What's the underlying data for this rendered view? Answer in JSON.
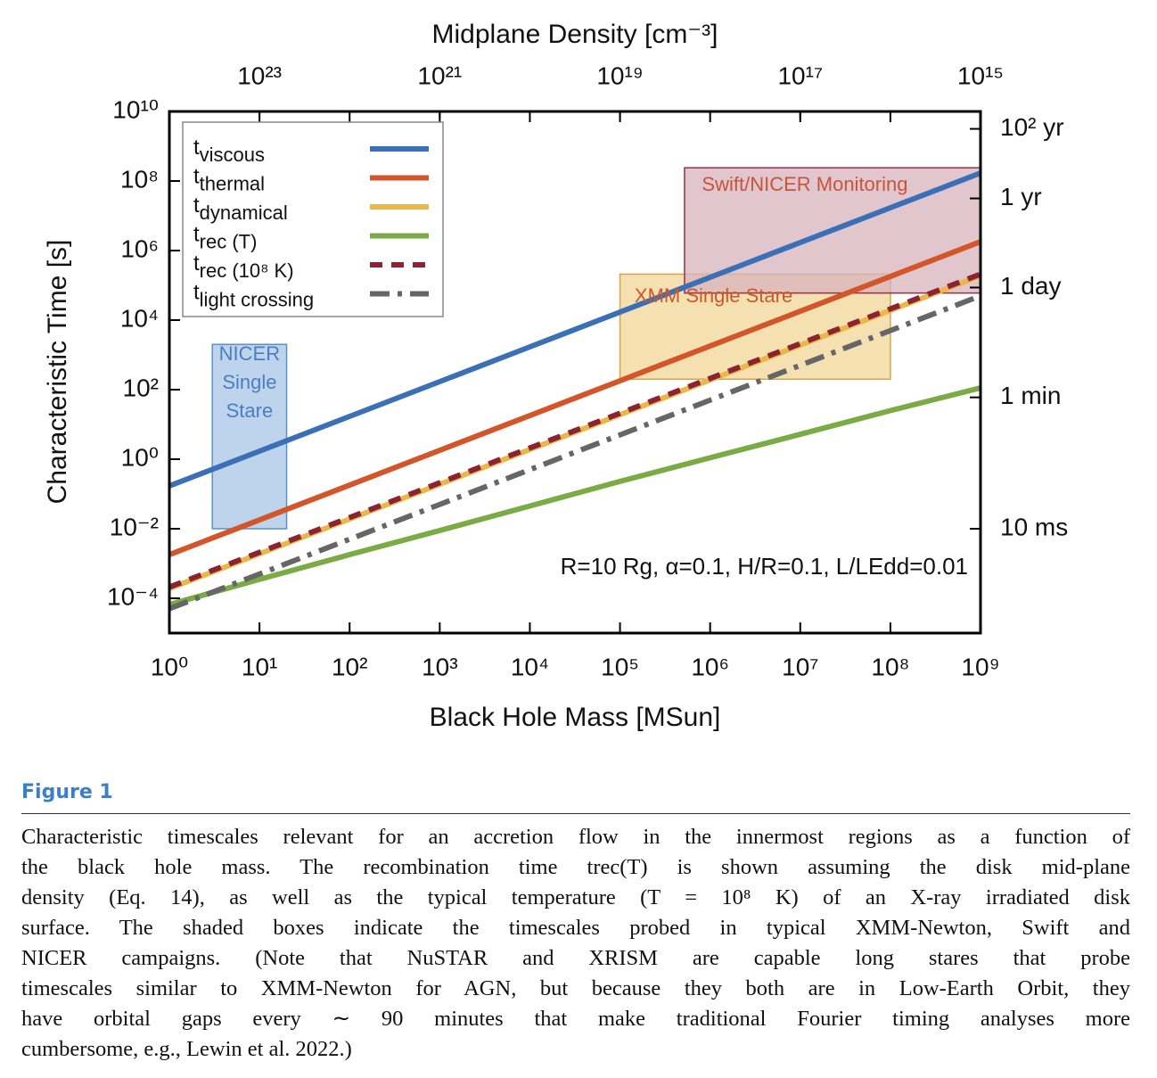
{
  "chart_data": {
    "type": "line",
    "xscale": "log",
    "yscale": "log",
    "x2_label": "Midplane Density [cm⁻³]",
    "x_label": "Black Hole Mass [MSun]",
    "y_label": "Characteristic Time [s]",
    "annotation": "R=10 Rg, α=0.1, H/R=0.1, L/LEdd=0.01",
    "x": [
      1,
      10,
      100,
      1000,
      10000,
      100000,
      1000000,
      10000000,
      100000000,
      1000000000
    ],
    "xlim": [
      1,
      1000000000
    ],
    "xticks": [
      {
        "value": 1,
        "label": "10⁰"
      },
      {
        "value": 10,
        "label": "10¹"
      },
      {
        "value": 100,
        "label": "10²"
      },
      {
        "value": 1000,
        "label": "10³"
      },
      {
        "value": 10000,
        "label": "10⁴"
      },
      {
        "value": 100000,
        "label": "10⁵"
      },
      {
        "value": 1000000,
        "label": "10⁶"
      },
      {
        "value": 10000000,
        "label": "10⁷"
      },
      {
        "value": 100000000,
        "label": "10⁸"
      },
      {
        "value": 1000000000,
        "label": "10⁹"
      }
    ],
    "x2lim": [
      1e+24,
      1000000000000000.0
    ],
    "x2ticks": [
      {
        "value": 1e+23,
        "label": "10²³"
      },
      {
        "value": 1e+21,
        "label": "10²¹"
      },
      {
        "value": 1e+19,
        "label": "10¹⁹"
      },
      {
        "value": 1e+17,
        "label": "10¹⁷"
      },
      {
        "value": 1000000000000000.0,
        "label": "10¹⁵"
      }
    ],
    "ylim": [
      1e-05,
      10000000000
    ],
    "yticks": [
      {
        "value": 0.0001,
        "label": "10⁻⁴"
      },
      {
        "value": 0.01,
        "label": "10⁻²"
      },
      {
        "value": 1,
        "label": "10⁰"
      },
      {
        "value": 100,
        "label": "10²"
      },
      {
        "value": 10000,
        "label": "10⁴"
      },
      {
        "value": 1000000,
        "label": "10⁶"
      },
      {
        "value": 100000000,
        "label": "10⁸"
      },
      {
        "value": 10000000000,
        "label": "10¹⁰"
      }
    ],
    "y2lim": [
      1e-05,
      10000000000
    ],
    "y2ticks": [
      {
        "value": 0.01,
        "label": "10 ms"
      },
      {
        "value": 60,
        "label": "1 min"
      },
      {
        "value": 86400,
        "label": "1 day"
      },
      {
        "value": 31557600,
        "label": "1 yr"
      },
      {
        "value": 3155760000,
        "label": "10² yr"
      }
    ],
    "legend": "upper left",
    "series": [
      {
        "name": "tviscous",
        "color": "#3b6fb6",
        "dash": "solid",
        "values": [
          0.17,
          1.7,
          17,
          170,
          1700,
          17000,
          170000,
          1700000,
          17000000,
          170000000
        ]
      },
      {
        "name": "tthermal",
        "color": "#d2562a",
        "dash": "solid",
        "values": [
          0.0018,
          0.018,
          0.18,
          1.8,
          18,
          180,
          1800,
          18000,
          180000,
          1800000
        ]
      },
      {
        "name": "tdynamical",
        "color": "#e9b84a",
        "dash": "solid",
        "values": [
          0.00019,
          0.0019,
          0.019,
          0.19,
          1.9,
          19,
          190,
          1900,
          19000,
          190000
        ]
      },
      {
        "name": "trec (T)",
        "color": "#7aab45",
        "dash": "solid",
        "values": [
          6.6e-05,
          0.00035,
          0.0018,
          0.0089,
          0.045,
          0.23,
          1.1,
          5.2,
          25,
          112
        ]
      },
      {
        "name": "trec (10⁸ K)",
        "color": "#8c2232",
        "dash": "dashed",
        "values": [
          0.00021,
          0.0021,
          0.021,
          0.21,
          2.1,
          21,
          210,
          2100,
          21000,
          210000
        ]
      },
      {
        "name": "tlight crossing",
        "color": "#666666",
        "dash": "dashdot",
        "values": [
          5e-05,
          0.0005,
          0.005,
          0.05,
          0.5,
          5,
          50,
          500,
          5000,
          50000
        ]
      }
    ],
    "regions": [
      {
        "label": [
          "NICER",
          "Single",
          "Stare"
        ],
        "x": [
          3,
          20
        ],
        "y": [
          0.01,
          2000
        ],
        "color": "#a8c5e6",
        "edge": "#5b8fc9",
        "text_color": "#4a7ec0"
      },
      {
        "label": [
          "XMM Single Stare"
        ],
        "x": [
          100000,
          100000000
        ],
        "y": [
          200,
          210000
        ],
        "color": "#f2d697",
        "edge": "#d4a74a",
        "text_color": "#d0562a"
      },
      {
        "label": [
          "Swift/NICER Monitoring"
        ],
        "x": [
          520000,
          1000000000
        ],
        "y": [
          60000,
          240000000
        ],
        "color": "#d8b3bd",
        "edge": "#9b2f45",
        "text_color": "#c6553b"
      }
    ]
  },
  "caption": {
    "label": "Figure 1",
    "lines": [
      "Characteristic timescales relevant for an accretion flow in the innermost regions as a function of",
      "the black hole mass. The recombination time trec(T) is shown assuming the disk mid-plane",
      "density (Eq. 14), as well as the typical temperature (T = 10⁸ K) of an X-ray irradiated disk",
      "surface. The shaded boxes indicate the timescales probed in typical XMM-Newton, Swift and",
      "NICER campaigns. (Note that NuSTAR and XRISM are capable long stares that probe",
      "timescales similar to XMM-Newton for AGN, but because they both are in Low-Earth Orbit, they",
      "have orbital gaps every ∼ 90 minutes that make traditional Fourier timing analyses more",
      "cumbersome, e.g., Lewin et al. 2022.)"
    ]
  }
}
